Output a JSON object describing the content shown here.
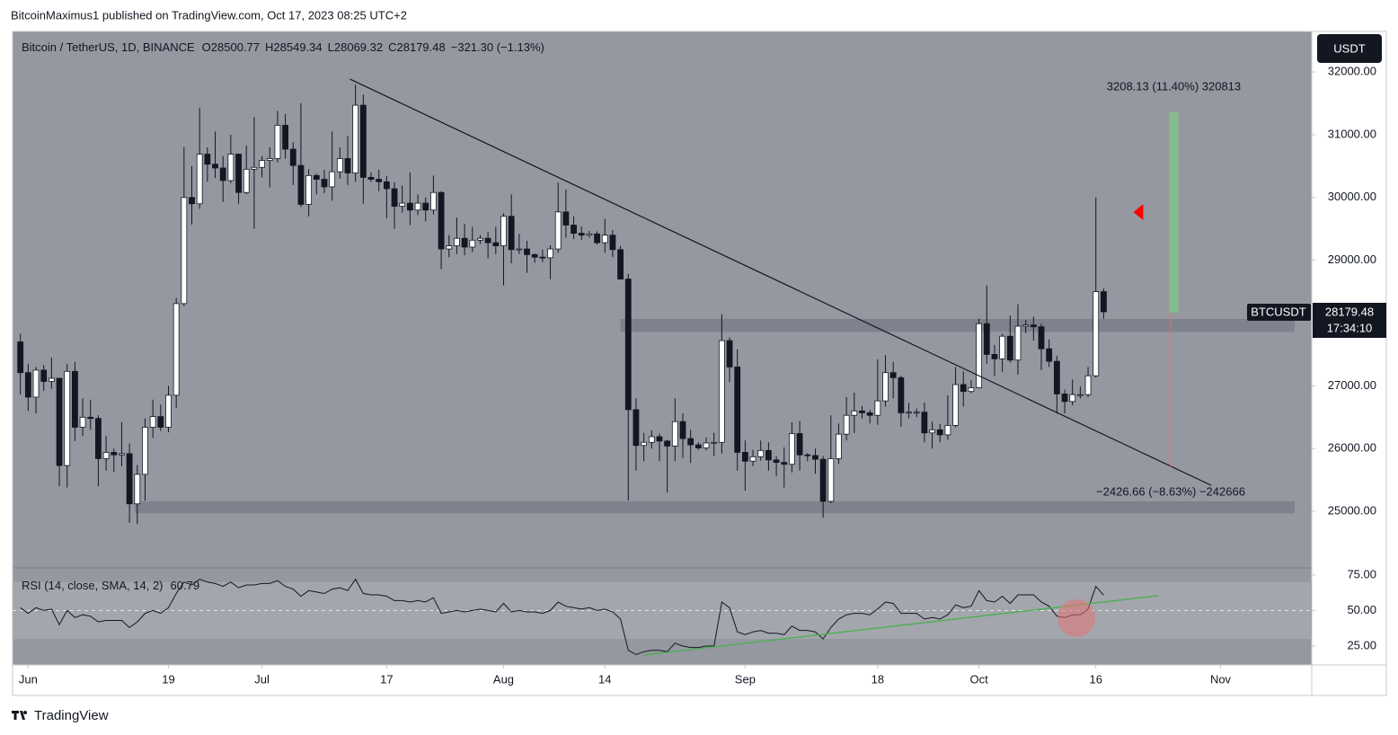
{
  "chart_data": {
    "type": "candlestick",
    "header": "BitcoinMaximus1 published on TradingView.com, Oct 17, 2023 08:25 UTC+2",
    "title": "Bitcoin / TetherUS, 1D, BINANCE",
    "legend": {
      "o": "O",
      "h": "H",
      "l": "L",
      "c": "C",
      "change": "−321.30 (−1.13%)"
    },
    "currency": "USDT",
    "symbol": "BTCUSDT",
    "countdown": "17:34:10",
    "footer": "TradingView",
    "xlim": [
      -1,
      165.7
    ],
    "xticks": [
      {
        "value": 1,
        "label": "Jun"
      },
      {
        "value": 19,
        "label": "19"
      },
      {
        "value": 31,
        "label": "Jul"
      },
      {
        "value": 47,
        "label": "17"
      },
      {
        "value": 62,
        "label": "Aug"
      },
      {
        "value": 75,
        "label": "14"
      },
      {
        "value": 93,
        "label": "Sep"
      },
      {
        "value": 110,
        "label": "18"
      },
      {
        "value": 123,
        "label": "Oct"
      },
      {
        "value": 138,
        "label": "16"
      },
      {
        "value": 154,
        "label": "Nov"
      }
    ],
    "ylim": [
      24100,
      32645
    ],
    "yticks": [
      {
        "value": 25000,
        "label": "25000.00"
      },
      {
        "value": 26000,
        "label": "26000.00"
      },
      {
        "value": 27000,
        "label": "27000.00"
      },
      {
        "value": 28000,
        "label": "28000.00"
      },
      {
        "value": 29000,
        "label": "29000.00"
      },
      {
        "value": 30000,
        "label": "30000.00"
      },
      {
        "value": 31000,
        "label": "31000.00"
      },
      {
        "value": 32000,
        "label": "32000.00"
      }
    ],
    "colors": {
      "up": "#ffffff",
      "down": "#131722",
      "background": "#9598a1"
    },
    "ohlc": [
      [
        27700,
        27830,
        26860,
        27210
      ],
      [
        27210,
        27350,
        26600,
        26820
      ],
      [
        26820,
        27300,
        26560,
        27250
      ],
      [
        27250,
        27330,
        26920,
        27070
      ],
      [
        27070,
        27450,
        26950,
        27120
      ],
      [
        27120,
        27130,
        25400,
        25730
      ],
      [
        25730,
        27350,
        25380,
        27230
      ],
      [
        27230,
        27380,
        26120,
        26340
      ],
      [
        26340,
        26800,
        26200,
        26500
      ],
      [
        26500,
        26780,
        26300,
        26480
      ],
      [
        26480,
        26530,
        25400,
        25840
      ],
      [
        25840,
        26200,
        25650,
        25940
      ],
      [
        25940,
        26000,
        25630,
        25900
      ],
      [
        25900,
        26420,
        25720,
        25920
      ],
      [
        25920,
        26080,
        24820,
        25120
      ],
      [
        25120,
        25740,
        24800,
        25590
      ],
      [
        25590,
        26480,
        25170,
        26340
      ],
      [
        26340,
        26780,
        26170,
        26510
      ],
      [
        26510,
        26700,
        26280,
        26340
      ],
      [
        26340,
        27000,
        26260,
        26850
      ],
      [
        26850,
        28400,
        26650,
        28310
      ],
      [
        28310,
        30800,
        28270,
        30000
      ],
      [
        30000,
        30500,
        29570,
        29900
      ],
      [
        29900,
        31430,
        29820,
        30690
      ],
      [
        30690,
        30800,
        30250,
        30530
      ],
      [
        30530,
        31050,
        30310,
        30470
      ],
      [
        30470,
        30660,
        29930,
        30270
      ],
      [
        30270,
        31000,
        30230,
        30690
      ],
      [
        30690,
        30700,
        29900,
        30080
      ],
      [
        30080,
        30830,
        30050,
        30450
      ],
      [
        30450,
        31280,
        29500,
        30480
      ],
      [
        30480,
        30660,
        30320,
        30590
      ],
      [
        30590,
        30800,
        30160,
        30620
      ],
      [
        30620,
        31380,
        30560,
        31150
      ],
      [
        31150,
        31330,
        30620,
        30770
      ],
      [
        30770,
        30880,
        30200,
        30510
      ],
      [
        30510,
        31500,
        29850,
        29890
      ],
      [
        29890,
        30450,
        29700,
        30350
      ],
      [
        30350,
        30380,
        30050,
        30290
      ],
      [
        30290,
        30440,
        30070,
        30170
      ],
      [
        30170,
        31050,
        29950,
        30410
      ],
      [
        30410,
        30800,
        30300,
        30620
      ],
      [
        30620,
        30980,
        30200,
        30390
      ],
      [
        30390,
        31800,
        30250,
        31470
      ],
      [
        31470,
        31640,
        29900,
        30320
      ],
      [
        30320,
        30400,
        30250,
        30290
      ],
      [
        30290,
        30440,
        30100,
        30250
      ],
      [
        30250,
        30340,
        29670,
        30140
      ],
      [
        30140,
        30240,
        29500,
        29860
      ],
      [
        29860,
        30190,
        29760,
        29910
      ],
      [
        29910,
        30400,
        29560,
        29800
      ],
      [
        29800,
        30050,
        29720,
        29910
      ],
      [
        29910,
        30000,
        29620,
        29800
      ],
      [
        29800,
        30350,
        29730,
        30080
      ],
      [
        30080,
        30100,
        28860,
        29180
      ],
      [
        29180,
        29400,
        29050,
        29230
      ],
      [
        29230,
        29680,
        29100,
        29350
      ],
      [
        29350,
        29580,
        29080,
        29210
      ],
      [
        29210,
        29530,
        29130,
        29320
      ],
      [
        29320,
        29400,
        29260,
        29350
      ],
      [
        29350,
        29450,
        29030,
        29280
      ],
      [
        29280,
        29530,
        29100,
        29230
      ],
      [
        29230,
        29750,
        28600,
        29700
      ],
      [
        29700,
        30050,
        28950,
        29170
      ],
      [
        29170,
        29420,
        29100,
        29180
      ],
      [
        29180,
        29310,
        28800,
        29090
      ],
      [
        29090,
        29110,
        28960,
        29050
      ],
      [
        29050,
        29170,
        28970,
        29040
      ],
      [
        29040,
        29240,
        28700,
        29180
      ],
      [
        29180,
        30240,
        29120,
        29770
      ],
      [
        29770,
        30130,
        29360,
        29560
      ],
      [
        29560,
        29700,
        29340,
        29430
      ],
      [
        29430,
        29540,
        29320,
        29400
      ],
      [
        29400,
        29470,
        29360,
        29420
      ],
      [
        29420,
        29460,
        29250,
        29280
      ],
      [
        29280,
        29660,
        29120,
        29400
      ],
      [
        29400,
        29480,
        29050,
        29170
      ],
      [
        29170,
        29230,
        28700,
        28700
      ],
      [
        28700,
        28780,
        25170,
        26620
      ],
      [
        26620,
        26800,
        25650,
        26050
      ],
      [
        26050,
        26250,
        25800,
        26100
      ],
      [
        26100,
        26290,
        26000,
        26190
      ],
      [
        26190,
        26240,
        25800,
        26120
      ],
      [
        26120,
        26140,
        25300,
        26040
      ],
      [
        26040,
        26800,
        25800,
        26430
      ],
      [
        26430,
        26560,
        25850,
        26160
      ],
      [
        26160,
        26300,
        25770,
        26060
      ],
      [
        26060,
        26100,
        25980,
        26010
      ],
      [
        26010,
        26180,
        25970,
        26090
      ],
      [
        26090,
        26250,
        25880,
        26100
      ],
      [
        26100,
        28140,
        25920,
        27720
      ],
      [
        27720,
        27770,
        27060,
        27300
      ],
      [
        27300,
        27580,
        25650,
        25940
      ],
      [
        25940,
        26130,
        25330,
        25800
      ],
      [
        25800,
        25980,
        25720,
        25870
      ],
      [
        25870,
        26130,
        25810,
        25970
      ],
      [
        25970,
        26100,
        25650,
        25820
      ],
      [
        25820,
        25880,
        25560,
        25780
      ],
      [
        25780,
        26020,
        25380,
        25750
      ],
      [
        25750,
        26420,
        25620,
        26240
      ],
      [
        26240,
        26440,
        25650,
        25900
      ],
      [
        25900,
        25930,
        25800,
        25890
      ],
      [
        25890,
        26000,
        25600,
        25830
      ],
      [
        25830,
        25880,
        24900,
        25160
      ],
      [
        25160,
        26530,
        25130,
        25840
      ],
      [
        25840,
        26400,
        25760,
        26230
      ],
      [
        26230,
        26820,
        26130,
        26530
      ],
      [
        26530,
        26890,
        26250,
        26600
      ],
      [
        26600,
        26680,
        26480,
        26570
      ],
      [
        26570,
        26620,
        26400,
        26530
      ],
      [
        26530,
        27420,
        26380,
        26760
      ],
      [
        26760,
        27490,
        26670,
        27210
      ],
      [
        27210,
        27380,
        26800,
        27130
      ],
      [
        27130,
        27160,
        26350,
        26570
      ],
      [
        26570,
        26730,
        26480,
        26580
      ],
      [
        26580,
        26640,
        26500,
        26580
      ],
      [
        26580,
        26730,
        26100,
        26250
      ],
      [
        26250,
        26430,
        26000,
        26300
      ],
      [
        26300,
        26390,
        26100,
        26220
      ],
      [
        26220,
        26850,
        26140,
        26370
      ],
      [
        26370,
        27300,
        26340,
        27020
      ],
      [
        27020,
        27230,
        26670,
        26910
      ],
      [
        26910,
        27090,
        26880,
        26970
      ],
      [
        26970,
        28070,
        26960,
        27990
      ],
      [
        27990,
        28600,
        27350,
        27500
      ],
      [
        27500,
        27650,
        27160,
        27430
      ],
      [
        27430,
        27830,
        27220,
        27790
      ],
      [
        27790,
        28120,
        27370,
        27410
      ],
      [
        27410,
        28300,
        27180,
        27950
      ],
      [
        27950,
        28050,
        27840,
        27970
      ],
      [
        27970,
        28100,
        27720,
        27940
      ],
      [
        27940,
        27990,
        27250,
        27590
      ],
      [
        27590,
        27740,
        27300,
        27390
      ],
      [
        27390,
        27480,
        26560,
        26870
      ],
      [
        26870,
        26940,
        26560,
        26750
      ],
      [
        26750,
        27100,
        26690,
        26860
      ],
      [
        26860,
        26990,
        26800,
        26860
      ],
      [
        26860,
        27300,
        26820,
        27160
      ],
      [
        27160,
        30000,
        27130,
        28500
      ],
      [
        28500.77,
        28549.34,
        28069.32,
        28179.48
      ]
    ],
    "drawings": {
      "trendline": {
        "x": [
          42.3,
          152.8
        ],
        "y": [
          31885,
          25415
        ],
        "color": "#131722"
      },
      "zones": [
        {
          "x": [
            77,
            163.5
          ],
          "y": [
            27860,
            28065
          ],
          "color": "#787b86"
        },
        {
          "x": [
            14.7,
            163.5
          ],
          "y": [
            24970,
            25160
          ],
          "color": "#787b86"
        }
      ],
      "measure_up": {
        "x": 148,
        "y": [
          28163,
          31356
        ],
        "color": "#81c784",
        "label": "3208.13 (11.40%) 320813"
      },
      "measure_down": {
        "x": 147.6,
        "y": [
          28163,
          25700
        ],
        "color": "#e57373",
        "label": "−2426.66 (−8.63%) −242666"
      },
      "arrow": {
        "x": 143.5,
        "y": 29767,
        "color": "#ff0000"
      }
    },
    "rsi": {
      "label": "RSI (14, close, SMA, 14, 2)",
      "color": "#131722",
      "ylim": [
        11.7,
        80
      ],
      "yticks": [
        {
          "value": 25,
          "label": "25.00"
        },
        {
          "value": 50,
          "label": "50.00"
        },
        {
          "value": 75,
          "label": "75.00"
        }
      ],
      "band": [
        30,
        70
      ],
      "midline": 50,
      "values": [
        52,
        48,
        52,
        50,
        51,
        40,
        50,
        45,
        47,
        46,
        42,
        43,
        43,
        43,
        38,
        42,
        48,
        50,
        48,
        52,
        62,
        70,
        68,
        72,
        70,
        69,
        67,
        70,
        66,
        68,
        68,
        69,
        69,
        71,
        67,
        65,
        60,
        64,
        63,
        62,
        65,
        66,
        64,
        72,
        62,
        61,
        61,
        60,
        57,
        57,
        56,
        57,
        56,
        59,
        48,
        49,
        50,
        49,
        50,
        51,
        50,
        49,
        55,
        49,
        50,
        49,
        49,
        48,
        50,
        56,
        53,
        52,
        51,
        52,
        50,
        51,
        49,
        44,
        22,
        19,
        21,
        22,
        22,
        21,
        27,
        25,
        24,
        24,
        25,
        25,
        56,
        52,
        35,
        33,
        35,
        36,
        34,
        34,
        33,
        39,
        36,
        36,
        35,
        30,
        38,
        44,
        47,
        48,
        48,
        47,
        51,
        56,
        55,
        48,
        48,
        48,
        44,
        45,
        44,
        47,
        54,
        52,
        53,
        64,
        57,
        56,
        60,
        55,
        61,
        61,
        61,
        56,
        53,
        46,
        45,
        47,
        47,
        51,
        67,
        60.79
      ],
      "trendline": {
        "x": [
          80,
          146
        ],
        "y": [
          18.7,
          60.4
        ],
        "color": "#4caf50"
      },
      "circle": {
        "x": 135.5,
        "y": 44.6,
        "color": "#e57373"
      }
    }
  }
}
